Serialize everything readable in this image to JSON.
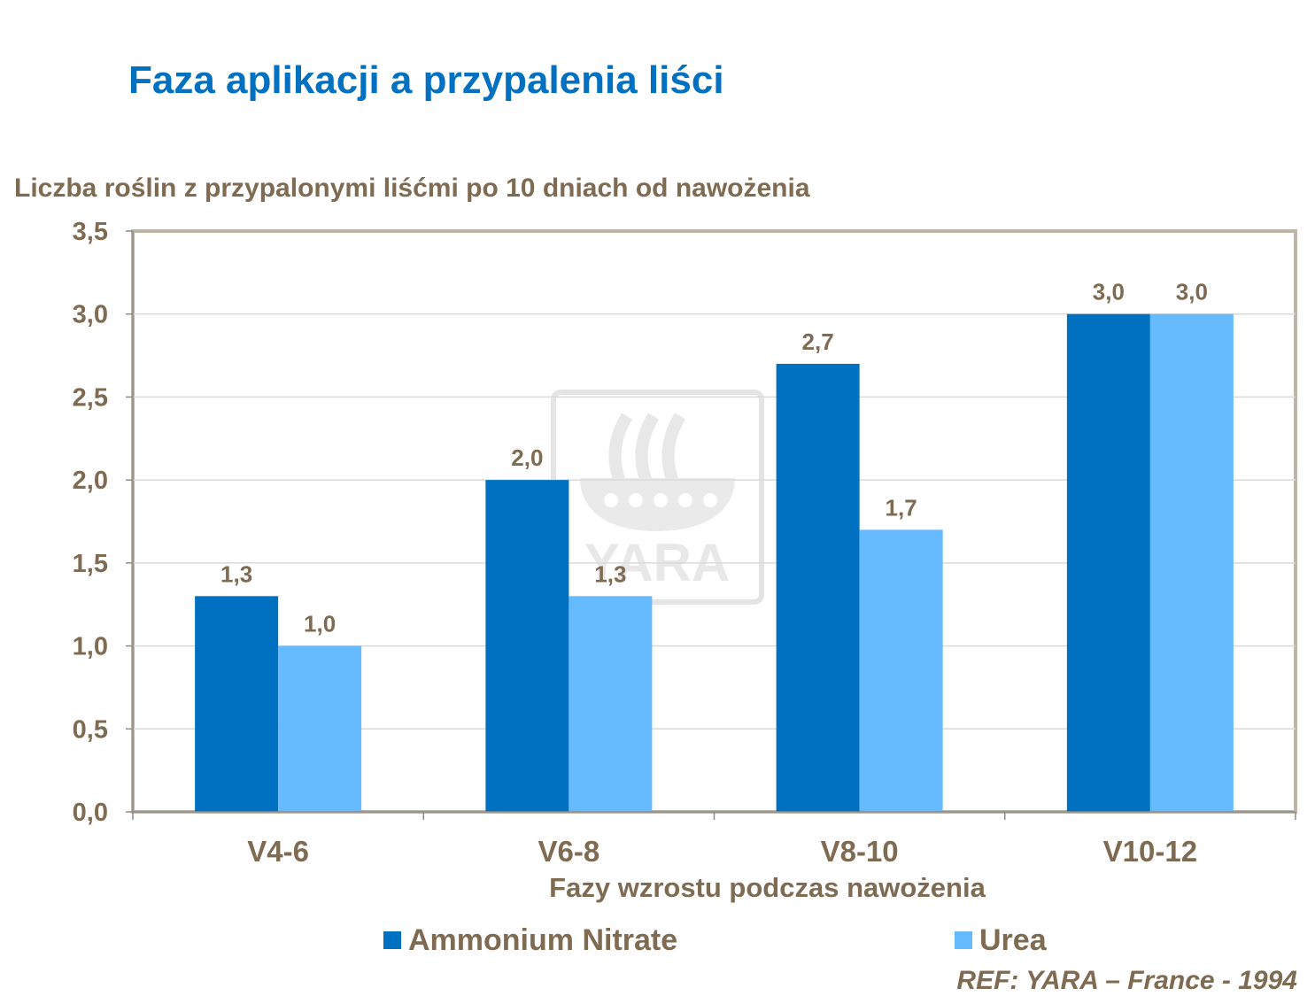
{
  "chart_data": {
    "type": "bar",
    "title": "Faza aplikacji a przypalenia liści",
    "ylabel": "Liczba roślin z przypalonymi liśćmi po 10 dniach od nawożenia",
    "xlabel": "Fazy wzrostu podczas nawożenia",
    "categories": [
      "V4-6",
      "V6-8",
      "V8-10",
      "V10-12"
    ],
    "series": [
      {
        "name": "Ammonium Nitrate",
        "color": "#0070C0",
        "values": [
          1.3,
          2.0,
          2.7,
          3.0
        ],
        "labels": [
          "1,3",
          "2,0",
          "2,7",
          "3,0"
        ]
      },
      {
        "name": "Urea",
        "color": "#66BBFF",
        "values": [
          1.0,
          1.3,
          1.7,
          3.0
        ],
        "labels": [
          "1,0",
          "1,3",
          "1,7",
          "3,0"
        ]
      }
    ],
    "ylim": [
      0,
      3.5
    ],
    "yticks": [
      "0,0",
      "0,5",
      "1,0",
      "1,5",
      "2,0",
      "2,5",
      "3,0",
      "3,5"
    ],
    "grid": true,
    "legend_position": "bottom"
  },
  "source_note": "REF: YARA – France - 1994",
  "watermark_text": "YARA"
}
